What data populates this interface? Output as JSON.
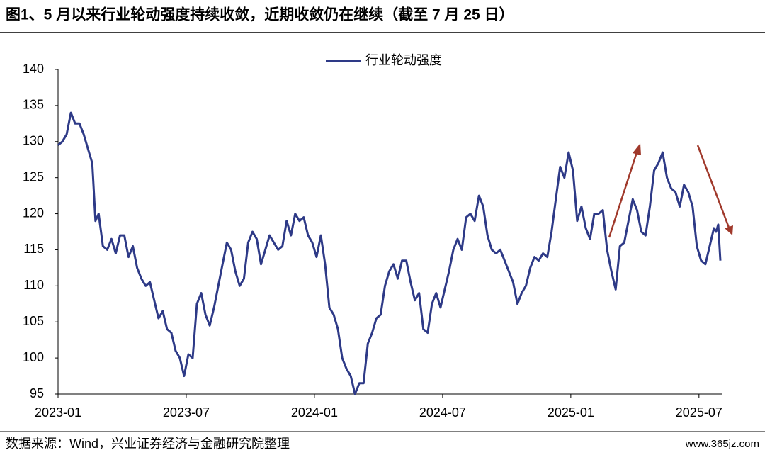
{
  "chart_data": {
    "type": "line",
    "title": "图1、5 月以来行业轮动强度持续收敛，近期收敛仍在继续（截至 7 月 25 日）",
    "source": "数据来源：Wind，兴业证券经济与金融研究院整理",
    "watermark": "www.365jz.com",
    "legend": "top",
    "x": [
      0,
      0.2,
      0.4,
      0.6,
      0.8,
      1.0,
      1.2,
      1.4,
      1.6,
      1.75,
      1.9,
      2.1,
      2.3,
      2.5,
      2.7,
      2.9,
      3.1,
      3.3,
      3.5,
      3.7,
      3.9,
      4.1,
      4.3,
      4.5,
      4.7,
      4.9,
      5.1,
      5.3,
      5.5,
      5.7,
      5.9,
      6.1,
      6.3,
      6.5,
      6.7,
      6.9,
      7.1,
      7.3,
      7.5,
      7.7,
      7.9,
      8.1,
      8.3,
      8.5,
      8.7,
      8.9,
      9.1,
      9.3,
      9.5,
      9.7,
      9.9,
      10.1,
      10.3,
      10.5,
      10.7,
      10.9,
      11.1,
      11.3,
      11.5,
      11.7,
      11.9,
      12.1,
      12.3,
      12.5,
      12.7,
      12.9,
      13.1,
      13.3,
      13.5,
      13.7,
      13.9,
      14.1,
      14.3,
      14.5,
      14.7,
      14.9,
      15.1,
      15.3,
      15.5,
      15.7,
      15.9,
      16.1,
      16.3,
      16.5,
      16.7,
      16.9,
      17.1,
      17.3,
      17.5,
      17.7,
      17.9,
      18.1,
      18.3,
      18.5,
      18.7,
      18.9,
      19.1,
      19.3,
      19.5,
      19.7,
      19.9,
      20.1,
      20.3,
      20.5,
      20.7,
      20.9,
      21.1,
      21.3,
      21.5,
      21.7,
      21.9,
      22.1,
      22.3,
      22.5,
      22.7,
      22.9,
      23.1,
      23.3,
      23.5,
      23.7,
      23.9,
      24.1,
      24.3,
      24.5,
      24.7,
      24.9,
      25.1,
      25.3,
      25.5,
      25.7,
      25.9,
      26.1,
      26.3,
      26.5,
      26.7,
      26.9,
      27.1,
      27.3,
      27.5,
      27.7,
      27.9,
      28.1,
      28.3,
      28.5,
      28.7,
      28.9,
      29.1,
      29.3,
      29.5,
      29.7,
      29.9,
      30.1,
      30.3,
      30.5,
      30.7,
      30.8,
      30.9,
      31.0
    ],
    "series": [
      {
        "name": "行业轮动强度",
        "color": "#2e3a87",
        "values": [
          129.5,
          130,
          131,
          134,
          132.5,
          132.5,
          131,
          129,
          127,
          119,
          120,
          115.5,
          115,
          116.5,
          114.5,
          117,
          117,
          114,
          115.5,
          112.5,
          111,
          110,
          110.5,
          108,
          105.5,
          106.5,
          104,
          103.5,
          101,
          100,
          97.5,
          100.5,
          100,
          107.5,
          109,
          106,
          104.5,
          107,
          110,
          113,
          116,
          115,
          112,
          110,
          111,
          116,
          117.5,
          116.5,
          113,
          115,
          117,
          116,
          115,
          115.5,
          119,
          117,
          120,
          119,
          119.5,
          117,
          116,
          114,
          117,
          113,
          107,
          106,
          104,
          100,
          98.5,
          97.5,
          95,
          96.5,
          96.5,
          102,
          103.5,
          105.5,
          106,
          110,
          112,
          113,
          111,
          113.5,
          113.5,
          110.5,
          108,
          109,
          104,
          103.5,
          107.5,
          109,
          107,
          109.5,
          112,
          115,
          116.5,
          115,
          119.5,
          120,
          119,
          122.5,
          121,
          117,
          115,
          114.5,
          115,
          113.5,
          112,
          110.5,
          107.5,
          109,
          110,
          112.5,
          114,
          113.5,
          114.5,
          114,
          117.5,
          122,
          126.5,
          125,
          128.5,
          126,
          119,
          121,
          118,
          116.5,
          120,
          120,
          120.5,
          115,
          112,
          109.5,
          115.5,
          116,
          119,
          122,
          120.5,
          117.5,
          117,
          121,
          126,
          127,
          128.5,
          125,
          123.5,
          123,
          121,
          124,
          123,
          121,
          115.5,
          113.5,
          113,
          115.5,
          118,
          117.5,
          118.5,
          113.5
        ]
      }
    ],
    "xlim": [
      0,
      31.1
    ],
    "xticks": [
      {
        "value": 0,
        "label": "2023-01"
      },
      {
        "value": 6,
        "label": "2023-07"
      },
      {
        "value": 12,
        "label": "2024-01"
      },
      {
        "value": 18,
        "label": "2024-07"
      },
      {
        "value": 24,
        "label": "2025-01"
      },
      {
        "value": 30,
        "label": "2025-07"
      }
    ],
    "ylim": [
      95,
      140
    ],
    "yticks": [
      95,
      100,
      105,
      110,
      115,
      120,
      125,
      130,
      135,
      140
    ]
  }
}
